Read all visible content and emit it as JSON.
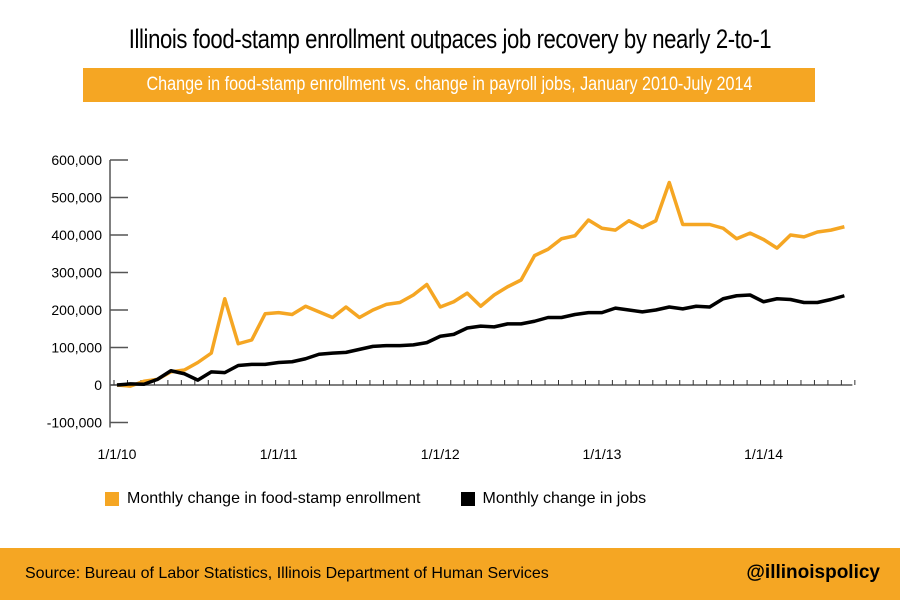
{
  "colors": {
    "food_stamp": "#F5A623",
    "jobs": "#000000",
    "accent": "#F5A623"
  },
  "footer": {
    "source": "Source: Bureau of Labor Statistics, Illinois Department of Human Services",
    "handle": "@illinoispolicy"
  },
  "chart_data": {
    "type": "line",
    "title": "Illinois food-stamp enrollment outpaces job recovery by nearly 2-to-1",
    "subtitle": "Change in food-stamp enrollment vs. change in payroll jobs, January 2010-July 2014",
    "xlabel": "",
    "ylabel": "",
    "ylim": [
      -100000,
      600000
    ],
    "yticks": [
      "600,000",
      "500,000",
      "400,000",
      "300,000",
      "200,000",
      "100,000",
      "0",
      "-100,000"
    ],
    "ytick_values": [
      600000,
      500000,
      400000,
      300000,
      200000,
      100000,
      0,
      -100000
    ],
    "xticks": [
      "1/1/10",
      "1/1/11",
      "1/1/12",
      "1/1/13",
      "1/1/14"
    ],
    "xtick_months": [
      0,
      12,
      24,
      36,
      48
    ],
    "x_start": "January 2010",
    "x_end": "July 2014",
    "grid": false,
    "legend_position": "bottom",
    "series": [
      {
        "name": "Monthly change in food-stamp enrollment",
        "values": [
          0,
          -3000,
          10000,
          15000,
          35000,
          40000,
          60000,
          85000,
          230000,
          110000,
          120000,
          190000,
          193000,
          188000,
          210000,
          195000,
          180000,
          208000,
          180000,
          200000,
          215000,
          220000,
          240000,
          268000,
          208000,
          222000,
          245000,
          210000,
          240000,
          262000,
          280000,
          345000,
          362000,
          390000,
          398000,
          440000,
          418000,
          413000,
          438000,
          420000,
          438000,
          540000,
          428000,
          428000,
          428000,
          418000,
          390000,
          405000,
          388000,
          365000,
          400000,
          395000,
          408000,
          413000,
          422000
        ]
      },
      {
        "name": "Monthly change in jobs",
        "values": [
          0,
          3000,
          2000,
          15000,
          38000,
          30000,
          13000,
          35000,
          33000,
          52000,
          55000,
          55000,
          60000,
          62000,
          70000,
          82000,
          85000,
          87000,
          95000,
          103000,
          105000,
          105000,
          107000,
          113000,
          130000,
          135000,
          152000,
          157000,
          155000,
          163000,
          163000,
          170000,
          180000,
          180000,
          188000,
          193000,
          193000,
          205000,
          200000,
          195000,
          200000,
          208000,
          203000,
          210000,
          208000,
          230000,
          238000,
          240000,
          222000,
          230000,
          228000,
          220000,
          220000,
          228000,
          238000
        ]
      }
    ]
  }
}
